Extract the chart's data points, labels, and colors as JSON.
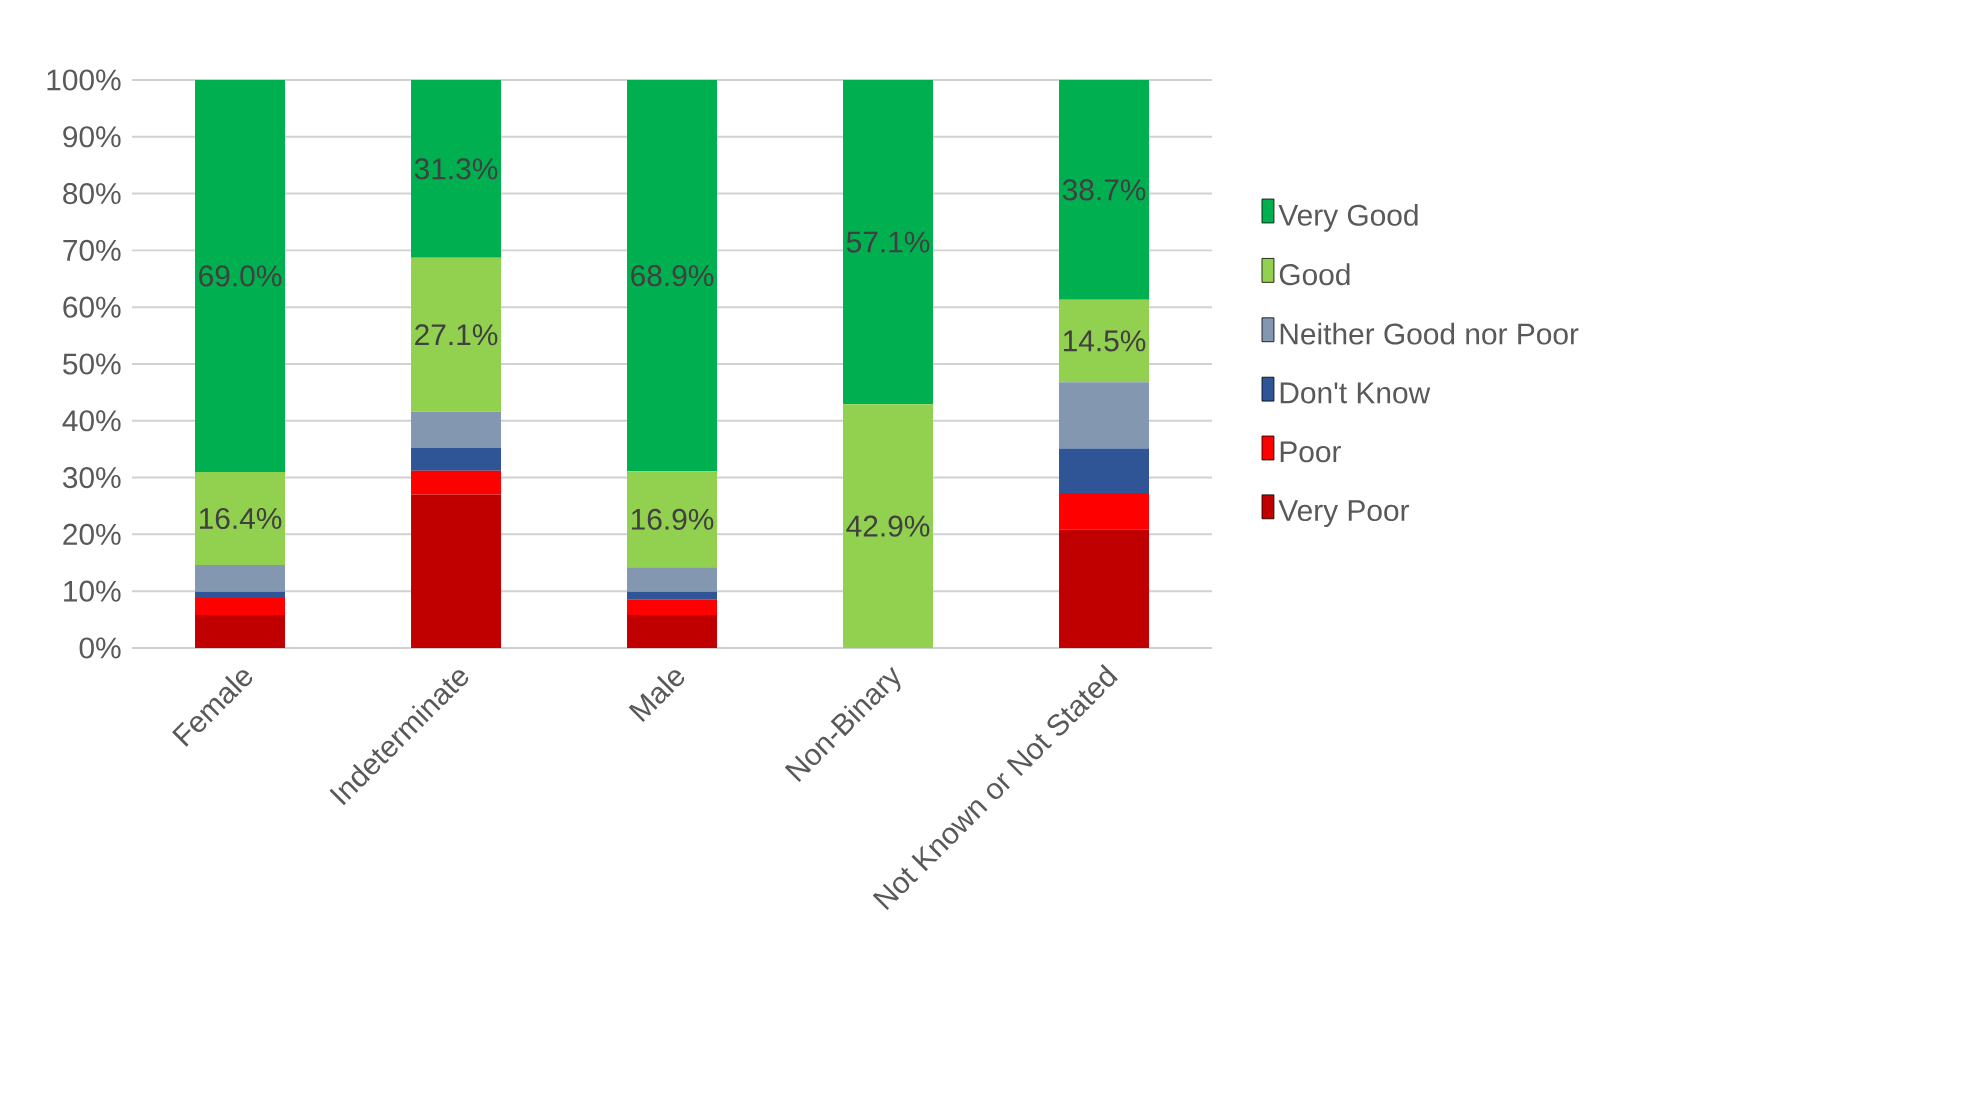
{
  "chart_data": {
    "type": "bar",
    "stacked": true,
    "categories": [
      "Female",
      "Indeterminate",
      "Male",
      "Non-Binary",
      "Not Known or Not Stated"
    ],
    "series": [
      {
        "name": "Very Poor",
        "color": "#c00000",
        "values": [
          5.8,
          27.0,
          5.8,
          0,
          20.8
        ]
      },
      {
        "name": "Poor",
        "color": "#ff0000",
        "values": [
          3.0,
          4.2,
          2.7,
          0,
          6.5
        ]
      },
      {
        "name": "Don't Know",
        "color": "#2f5597",
        "values": [
          1.1,
          4.0,
          1.4,
          0,
          7.8
        ]
      },
      {
        "name": "Neither Good nor Poor",
        "color": "#8497b0",
        "values": [
          4.7,
          6.4,
          4.3,
          0,
          11.7
        ]
      },
      {
        "name": "Good",
        "color": "#92d050",
        "values": [
          16.4,
          27.1,
          16.9,
          42.9,
          14.5
        ],
        "value_labels": [
          "16.4%",
          "27.1%",
          "16.9%",
          "42.9%",
          "14.5%"
        ]
      },
      {
        "name": "Very Good",
        "color": "#00b050",
        "values": [
          69.0,
          31.3,
          68.9,
          57.1,
          38.7
        ],
        "value_labels": [
          "69.0%",
          "31.3%",
          "68.9%",
          "57.1%",
          "38.7%"
        ]
      }
    ],
    "ylim": [
      0,
      100
    ],
    "yticks": [
      {
        "value": 0,
        "label": "0%"
      },
      {
        "value": 10,
        "label": "10%"
      },
      {
        "value": 20,
        "label": "20%"
      },
      {
        "value": 30,
        "label": "30%"
      },
      {
        "value": 40,
        "label": "40%"
      },
      {
        "value": 50,
        "label": "50%"
      },
      {
        "value": 60,
        "label": "60%"
      },
      {
        "value": 70,
        "label": "70%"
      },
      {
        "value": 80,
        "label": "80%"
      },
      {
        "value": 90,
        "label": "90%"
      },
      {
        "value": 100,
        "label": "100%"
      }
    ],
    "grid": "y",
    "legend": "right"
  }
}
